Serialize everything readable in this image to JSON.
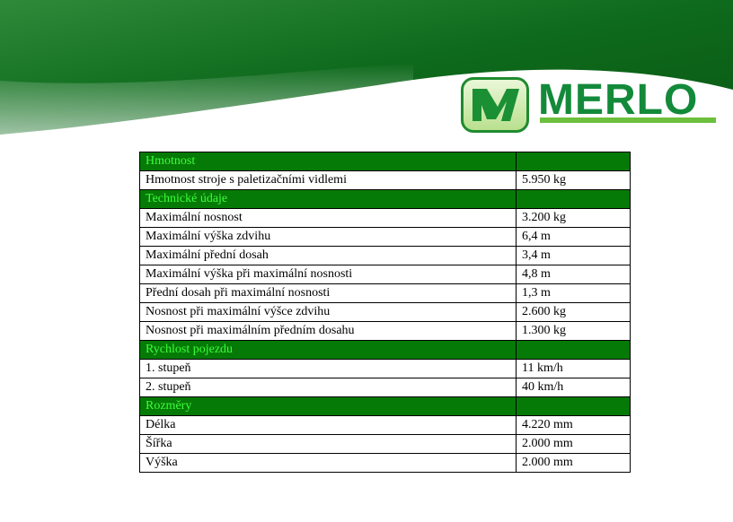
{
  "brand": {
    "name": "MERLO",
    "colors": {
      "banner": "#0b6e1a",
      "section_bg": "#067a06",
      "section_text": "#3bff3b"
    }
  },
  "rows": [
    {
      "type": "section",
      "label": "Hmotnost",
      "value": ""
    },
    {
      "type": "row",
      "label": "Hmotnost stroje s paletizačními vidlemi",
      "value": "5.950 kg"
    },
    {
      "type": "section",
      "label": "Technické údaje",
      "value": ""
    },
    {
      "type": "row",
      "label": "Maximální nosnost",
      "value": "3.200 kg"
    },
    {
      "type": "row",
      "label": "Maximální výška zdvihu",
      "value": "6,4 m"
    },
    {
      "type": "row",
      "label": "Maximální přední dosah",
      "value": "3,4 m"
    },
    {
      "type": "row",
      "label": "Maximální výška při maximální nosnosti",
      "value": "4,8 m"
    },
    {
      "type": "row",
      "label": "Přední dosah při maximální nosnosti",
      "value": "1,3 m"
    },
    {
      "type": "row",
      "label": "Nosnost při maximální výšce zdvihu",
      "value": "2.600 kg"
    },
    {
      "type": "row",
      "label": "Nosnost při maximálním předním dosahu",
      "value": "1.300 kg"
    },
    {
      "type": "section",
      "label": "Rychlost pojezdu",
      "value": ""
    },
    {
      "type": "row",
      "label": "1. stupeň",
      "value": "11 km/h"
    },
    {
      "type": "row",
      "label": "2. stupeň",
      "value": "40 km/h"
    },
    {
      "type": "section",
      "label": "Rozměry",
      "value": ""
    },
    {
      "type": "row",
      "label": "Délka",
      "value": "4.220 mm"
    },
    {
      "type": "row",
      "label": "Šířka",
      "value": "2.000 mm"
    },
    {
      "type": "row",
      "label": "Výška",
      "value": "2.000 mm"
    }
  ]
}
